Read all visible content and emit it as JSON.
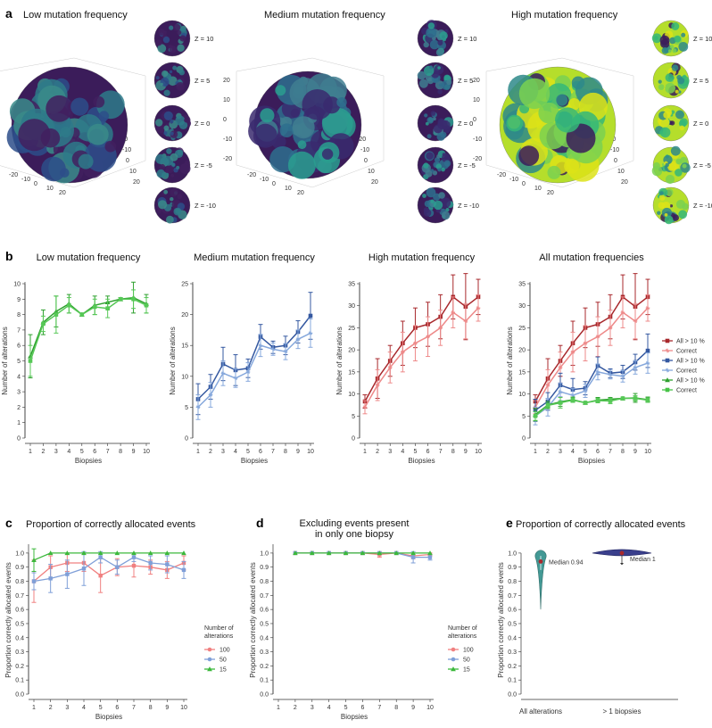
{
  "panel_a": {
    "letter": "a",
    "titles": [
      "Low mutation frequency",
      "Medium mutation frequency",
      "High mutation frequency"
    ],
    "slice_labels": [
      "Z = 10",
      "Z = 5",
      "Z = 0",
      "Z = -5",
      "Z = -10"
    ],
    "axis_ticks_left": [
      "20",
      "10",
      "0",
      "-10",
      "-20"
    ],
    "axis_ticks_right": [
      "-20",
      "-10",
      "0",
      "10",
      "20"
    ],
    "axis_ticks_bottom": [
      "-20",
      "-10",
      "0",
      "10",
      "20"
    ]
  },
  "panel_b": {
    "letter": "b",
    "xlabel": "Biopsies",
    "ylabel": "Number of alterations",
    "legend": [
      {
        "label": "All > 10 %",
        "color": "#a8282c",
        "marker": "square"
      },
      {
        "label": "Correct",
        "color": "#ee8a8a",
        "marker": "star"
      },
      {
        "label": "All > 10 %",
        "color": "#3458a0",
        "marker": "square"
      },
      {
        "label": "Correct",
        "color": "#86a8dc",
        "marker": "star"
      },
      {
        "label": "All > 10 %",
        "color": "#2ea02e",
        "marker": "triangle"
      },
      {
        "label": "Correct",
        "color": "#46c346",
        "marker": "square"
      }
    ]
  },
  "panel_c": {
    "letter": "c"
  },
  "panel_d": {
    "letter": "d"
  },
  "panel_e": {
    "letter": "e"
  },
  "cd_legend": {
    "title_line1": "Number of",
    "title_line2": "alterations",
    "items": [
      {
        "label": "100",
        "color": "#f08080"
      },
      {
        "label": "50",
        "color": "#7f9fd8"
      },
      {
        "label": "15",
        "color": "#3cb83c"
      }
    ]
  },
  "chart_data": [
    {
      "type": "line",
      "id": "b1",
      "title": "Low mutation frequency",
      "xlabel": "Biopsies",
      "ylabel": "Number of alterations",
      "x": [
        1,
        2,
        3,
        4,
        5,
        6,
        7,
        8,
        9,
        10
      ],
      "ylim": [
        0,
        10
      ],
      "xticks": [
        "1",
        "2",
        "3",
        "4",
        "5",
        "6",
        "7",
        "8",
        "9",
        "10"
      ],
      "yticks": [
        "0",
        "1",
        "2",
        "3",
        "4",
        "5",
        "6",
        "7",
        "8",
        "9",
        "10"
      ],
      "series": [
        {
          "name": "All > 10 %",
          "color": "#2ea02e",
          "values": [
            5.3,
            7.5,
            8.2,
            8.7,
            8.0,
            8.6,
            8.8,
            9.0,
            9.1,
            8.7
          ],
          "err": [
            1.4,
            0.8,
            1.0,
            0.6,
            0.1,
            0.6,
            0.4,
            0.1,
            1.0,
            0.6
          ]
        },
        {
          "name": "Correct",
          "color": "#56c856",
          "values": [
            5.0,
            7.4,
            8.0,
            8.6,
            8.0,
            8.5,
            8.4,
            9.0,
            9.0,
            8.6
          ],
          "err": [
            1.0,
            0.5,
            1.2,
            0.5,
            0.1,
            0.5,
            0.6,
            0.1,
            0.6,
            0.5
          ]
        }
      ]
    },
    {
      "type": "line",
      "id": "b2",
      "title": "Medium mutation frequency",
      "xlabel": "Biopsies",
      "ylabel": "Number of alterations",
      "x": [
        1,
        2,
        3,
        4,
        5,
        6,
        7,
        8,
        9,
        10
      ],
      "ylim": [
        0,
        25
      ],
      "xticks": [
        "1",
        "2",
        "3",
        "4",
        "5",
        "6",
        "7",
        "8",
        "9",
        "10"
      ],
      "yticks": [
        "0",
        "5",
        "10",
        "15",
        "20",
        "25"
      ],
      "series": [
        {
          "name": "All > 10 %",
          "color": "#3458a0",
          "values": [
            6.3,
            8.3,
            12.0,
            11.0,
            11.3,
            16.4,
            14.7,
            15.0,
            17.2,
            19.8
          ],
          "err": [
            2.5,
            2.0,
            2.7,
            2.5,
            1.5,
            2.0,
            1.0,
            1.5,
            1.8,
            3.8
          ]
        },
        {
          "name": "Correct",
          "color": "#86a8dc",
          "values": [
            5.0,
            7.0,
            10.5,
            9.7,
            10.7,
            15.0,
            14.4,
            14.0,
            16.0,
            17.0
          ],
          "err": [
            2.0,
            2.0,
            2.0,
            1.5,
            1.5,
            1.8,
            1.0,
            1.3,
            1.5,
            2.3
          ]
        }
      ]
    },
    {
      "type": "line",
      "id": "b3",
      "title": "High mutation frequency",
      "xlabel": "Biopsies",
      "ylabel": "Number of alterations",
      "x": [
        1,
        2,
        3,
        4,
        5,
        6,
        7,
        8,
        9,
        10
      ],
      "ylim": [
        0,
        35
      ],
      "xticks": [
        "1",
        "2",
        "3",
        "4",
        "5",
        "6",
        "7",
        "8",
        "9",
        "10"
      ],
      "yticks": [
        "0",
        "5",
        "10",
        "15",
        "20",
        "25",
        "30",
        "35"
      ],
      "series": [
        {
          "name": "All > 10 %",
          "color": "#a8282c",
          "values": [
            8.3,
            13.5,
            17.5,
            21.5,
            25.0,
            25.8,
            27.5,
            32.0,
            29.8,
            32.0
          ],
          "err": [
            1.5,
            4.5,
            3.5,
            5.0,
            4.5,
            5.0,
            5.0,
            5.0,
            7.5,
            4.0
          ]
        },
        {
          "name": "Correct",
          "color": "#ee8a8a",
          "values": [
            7.0,
            12.0,
            16.0,
            19.5,
            21.5,
            23.0,
            25.0,
            28.5,
            26.5,
            29.5
          ],
          "err": [
            1.5,
            3.5,
            3.5,
            4.5,
            4.0,
            4.5,
            4.0,
            3.5,
            4.0,
            3.0
          ]
        }
      ]
    },
    {
      "type": "line",
      "id": "b4",
      "title": "All mutation frequencies",
      "xlabel": "Biopsies",
      "ylabel": "Number of alterations",
      "x": [
        1,
        2,
        3,
        4,
        5,
        6,
        7,
        8,
        9,
        10
      ],
      "ylim": [
        0,
        35
      ],
      "xticks": [
        "1",
        "2",
        "3",
        "4",
        "5",
        "6",
        "7",
        "8",
        "9",
        "10"
      ],
      "yticks": [
        "0",
        "5",
        "10",
        "15",
        "20",
        "25",
        "30",
        "35"
      ],
      "series": [
        {
          "name": "All > 10 % (high)",
          "color": "#a8282c",
          "values": [
            8.3,
            13.5,
            17.5,
            21.5,
            25.0,
            25.8,
            27.5,
            32.0,
            29.8,
            32.0
          ],
          "err": [
            1.5,
            4.5,
            3.5,
            5.0,
            4.5,
            5.0,
            5.0,
            5.0,
            7.5,
            4.0
          ]
        },
        {
          "name": "Correct (high)",
          "color": "#ee8a8a",
          "values": [
            7.0,
            12.0,
            16.0,
            19.5,
            21.5,
            23.0,
            25.0,
            28.5,
            26.5,
            29.5
          ],
          "err": [
            1.5,
            3.5,
            3.5,
            4.5,
            4.0,
            4.5,
            4.0,
            3.5,
            4.0,
            3.0
          ]
        },
        {
          "name": "All > 10 % (medium)",
          "color": "#3458a0",
          "values": [
            6.3,
            8.3,
            12.0,
            11.0,
            11.3,
            16.4,
            14.7,
            15.0,
            17.2,
            19.8
          ],
          "err": [
            2.5,
            2.0,
            2.7,
            2.5,
            1.5,
            2.0,
            1.0,
            1.5,
            1.8,
            3.8
          ]
        },
        {
          "name": "Correct (medium)",
          "color": "#86a8dc",
          "values": [
            5.0,
            7.0,
            10.5,
            9.7,
            10.7,
            15.0,
            14.4,
            14.0,
            16.0,
            17.0
          ],
          "err": [
            2.0,
            2.0,
            2.0,
            1.5,
            1.5,
            1.8,
            1.0,
            1.3,
            1.5,
            2.3
          ]
        },
        {
          "name": "All > 10 % (low)",
          "color": "#2ea02e",
          "values": [
            5.3,
            7.5,
            8.2,
            8.7,
            8.0,
            8.6,
            8.8,
            9.0,
            9.1,
            8.7
          ],
          "err": [
            1.4,
            0.8,
            1.0,
            0.6,
            0.1,
            0.6,
            0.4,
            0.1,
            1.0,
            0.6
          ]
        },
        {
          "name": "Correct (low)",
          "color": "#56c856",
          "values": [
            5.0,
            7.4,
            8.0,
            8.6,
            8.0,
            8.5,
            8.4,
            9.0,
            9.0,
            8.6
          ],
          "err": [
            1.0,
            0.5,
            1.2,
            0.5,
            0.1,
            0.5,
            0.6,
            0.1,
            0.6,
            0.5
          ]
        }
      ]
    },
    {
      "type": "line",
      "id": "c",
      "title": "Proportion of correctly allocated events",
      "xlabel": "Biopsies",
      "ylabel": "Proportion correctly allocated events",
      "x": [
        1,
        2,
        3,
        4,
        5,
        6,
        7,
        8,
        9,
        10
      ],
      "ylim": [
        0,
        1.05
      ],
      "xticks": [
        "1",
        "2",
        "3",
        "4",
        "5",
        "6",
        "7",
        "8",
        "9",
        "10"
      ],
      "yticks": [
        "0.0",
        "0.1",
        "0.2",
        "0.3",
        "0.4",
        "0.5",
        "0.6",
        "0.7",
        "0.8",
        "0.9",
        "1.0"
      ],
      "series": [
        {
          "name": "100",
          "color": "#f08080",
          "values": [
            0.8,
            0.9,
            0.93,
            0.93,
            0.84,
            0.9,
            0.91,
            0.9,
            0.88,
            0.93
          ],
          "err": [
            0.15,
            0.08,
            0.06,
            0.06,
            0.12,
            0.06,
            0.08,
            0.05,
            0.06,
            0.05
          ]
        },
        {
          "name": "50",
          "color": "#7f9fd8",
          "values": [
            0.8,
            0.82,
            0.85,
            0.89,
            0.97,
            0.9,
            0.97,
            0.93,
            0.92,
            0.88
          ],
          "err": [
            0.06,
            0.1,
            0.1,
            0.12,
            0.04,
            0.05,
            0.03,
            0.05,
            0.06,
            0.06
          ]
        },
        {
          "name": "15",
          "color": "#3cb83c",
          "values": [
            0.95,
            1.0,
            1.0,
            1.0,
            1.0,
            1.0,
            1.0,
            1.0,
            1.0,
            1.0
          ],
          "err": [
            0.08,
            0,
            0,
            0,
            0,
            0,
            0,
            0,
            0,
            0
          ]
        }
      ]
    },
    {
      "type": "line",
      "id": "d",
      "title": "Excluding events present in only one biopsy",
      "title_lines": [
        "Excluding events present",
        "in only one biopsy"
      ],
      "xlabel": "Biopsies",
      "ylabel": "Proportion correctly allocated events",
      "x": [
        2,
        3,
        4,
        5,
        6,
        7,
        8,
        9,
        10
      ],
      "xrange": [
        1,
        10
      ],
      "ylim": [
        0,
        1.05
      ],
      "xticks": [
        "1",
        "2",
        "3",
        "4",
        "5",
        "6",
        "7",
        "8",
        "9",
        "10"
      ],
      "yticks": [
        "0.0",
        "0.1",
        "0.2",
        "0.3",
        "0.4",
        "0.5",
        "0.6",
        "0.7",
        "0.8",
        "0.9",
        "1.0"
      ],
      "series": [
        {
          "name": "100",
          "color": "#f08080",
          "values": [
            1.0,
            1.0,
            1.0,
            1.0,
            1.0,
            0.99,
            1.0,
            0.98,
            0.99
          ],
          "err": [
            0,
            0,
            0,
            0,
            0,
            0.02,
            0,
            0.02,
            0.01
          ]
        },
        {
          "name": "50",
          "color": "#7f9fd8",
          "values": [
            1.0,
            1.0,
            1.0,
            1.0,
            1.0,
            1.0,
            1.0,
            0.97,
            0.97
          ],
          "err": [
            0,
            0,
            0,
            0,
            0,
            0,
            0,
            0.04,
            0.02
          ]
        },
        {
          "name": "15",
          "color": "#3cb83c",
          "values": [
            1.0,
            1.0,
            1.0,
            1.0,
            1.0,
            1.0,
            1.0,
            1.0,
            1.0
          ],
          "err": [
            0,
            0,
            0,
            0,
            0,
            0,
            0,
            0,
            0
          ]
        }
      ]
    },
    {
      "type": "violin",
      "id": "e",
      "title": "Proportion of correctly allocated events",
      "ylabel": "Proportion correctly allocated events",
      "ylim": [
        0,
        1.05
      ],
      "yticks": [
        "0.0",
        "0.1",
        "0.2",
        "0.3",
        "0.4",
        "0.5",
        "0.6",
        "0.7",
        "0.8",
        "0.9",
        "1.0"
      ],
      "categories": [
        "All alterations",
        "> 1 biopsies"
      ],
      "medians": [
        0.94,
        1.0
      ],
      "median_labels": [
        "Median 0.94",
        "Median 1"
      ],
      "colors": [
        "#2f8f8a",
        "#3a3f8c"
      ]
    }
  ]
}
